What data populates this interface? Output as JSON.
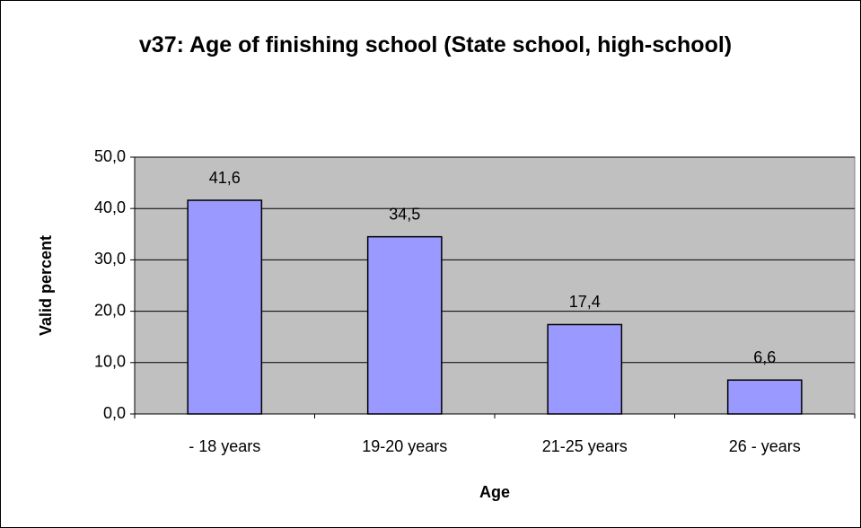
{
  "chart_data": {
    "type": "bar",
    "title": "v37: Age of finishing school (State school, high-school)",
    "xlabel": "Age",
    "ylabel": "Valid percent",
    "categories": [
      "- 18 years",
      "19-20 years",
      "21-25 years",
      "26 - years"
    ],
    "values": [
      41.6,
      34.5,
      17.4,
      6.6
    ],
    "value_labels": [
      "41,6",
      "34,5",
      "17,4",
      "6,6"
    ],
    "color": "#9999ff",
    "ylim": [
      0,
      50
    ],
    "yticks": [
      {
        "value": 0,
        "label": "0,0"
      },
      {
        "value": 10,
        "label": "10,0"
      },
      {
        "value": 20,
        "label": "20,0"
      },
      {
        "value": 30,
        "label": "30,0"
      },
      {
        "value": 40,
        "label": "40,0"
      },
      {
        "value": 50,
        "label": "50,0"
      }
    ],
    "grid": true
  }
}
